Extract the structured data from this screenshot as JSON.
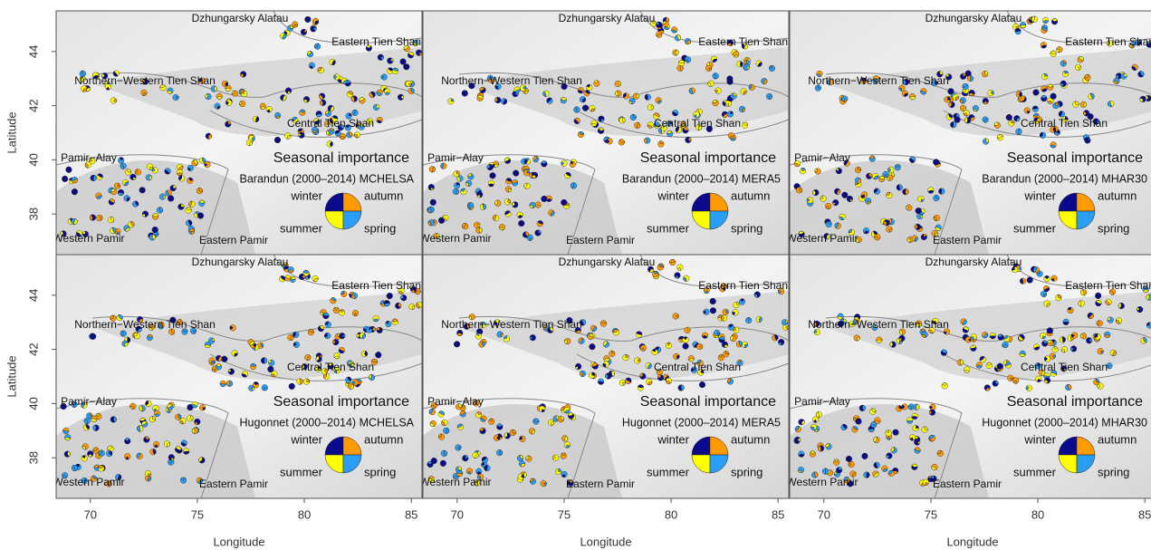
{
  "x_label": "Longitude",
  "y_label": "Latitude",
  "xlim": [
    68.4,
    85.5
  ],
  "ylim": [
    36.5,
    45.5
  ],
  "xticks": [
    70,
    75,
    80,
    85
  ],
  "yticks": [
    38,
    40,
    42,
    44
  ],
  "region_labels": [
    "Dzhungarsky Alatau",
    "Eastern Tien Shan",
    "Northern−Western Tien Shan",
    "Central Tien Shan",
    "Pamir−Alay",
    "Western Pamir",
    "Eastern Pamir"
  ],
  "legend": [
    {
      "name": "winter",
      "color": "#0a0a8c"
    },
    {
      "name": "autumn",
      "color": "#ff9a00"
    },
    {
      "name": "summer",
      "color": "#ffff00"
    },
    {
      "name": "spring",
      "color": "#2a9df4"
    }
  ],
  "panels": [
    {
      "title": "Seasonal importance",
      "subtitle": "Barandun (2000–2014) MCHELSA"
    },
    {
      "title": "Seasonal importance",
      "subtitle": "Barandun (2000–2014) MERA5"
    },
    {
      "title": "Seasonal importance",
      "subtitle": "Barandun (2000–2014) MHAR30"
    },
    {
      "title": "Seasonal importance",
      "subtitle": "Hugonnet (2000–2014) MCHELSA"
    },
    {
      "title": "Seasonal importance",
      "subtitle": "Hugonnet (2000–2014) MERA5"
    },
    {
      "title": "Seasonal importance",
      "subtitle": "Hugonnet (2000–2014) MHAR30"
    }
  ]
}
